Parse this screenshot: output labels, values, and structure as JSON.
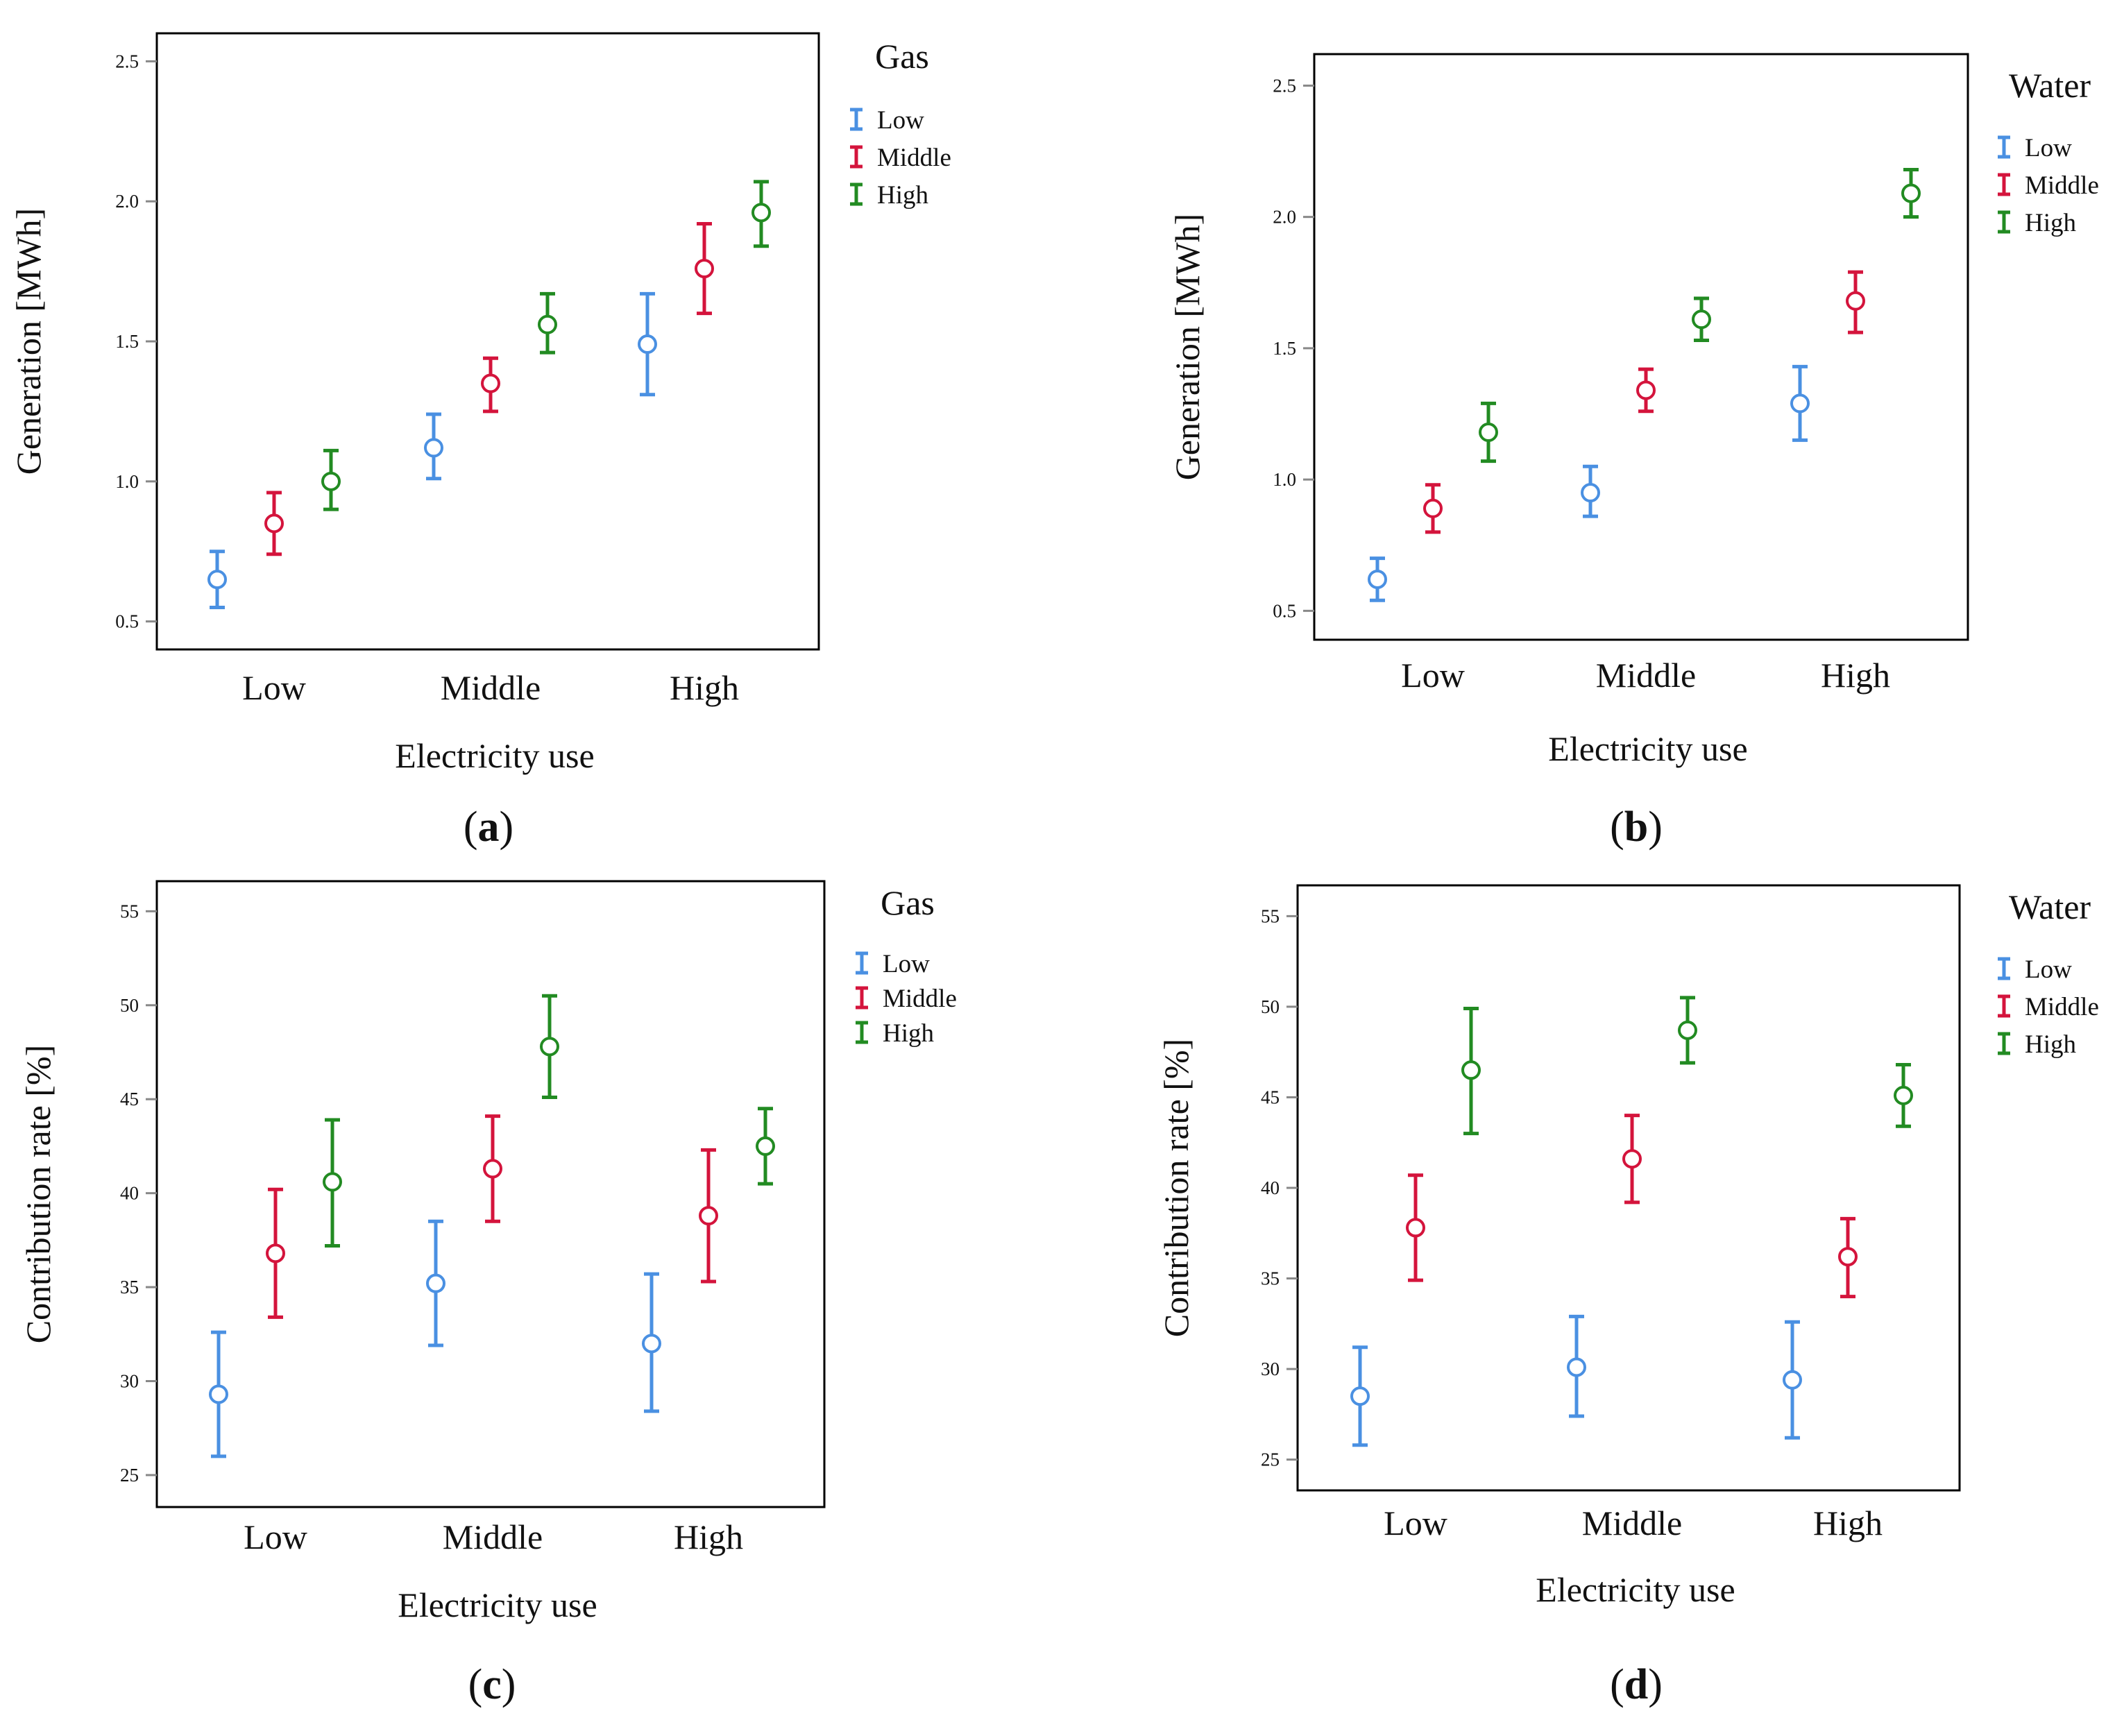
{
  "colors": {
    "low": "#4a90e2",
    "middle": "#d4143c",
    "high": "#228b22",
    "axis": "#000000",
    "tick": "#888888"
  },
  "chart_data": [
    {
      "panel_label": "a",
      "type": "errorbar",
      "xlabel": "Electricity use",
      "ylabel": "Generation [MWh]",
      "categories": [
        "Low",
        "Middle",
        "High"
      ],
      "ylim": [
        0.4,
        2.6
      ],
      "yticks": [
        "0.5",
        "1.0",
        "1.5",
        "2.0",
        "2.5"
      ],
      "legend_title": "Gas",
      "series": [
        {
          "name": "Low",
          "color_key": "low",
          "mean": [
            0.65,
            1.12,
            1.49
          ],
          "lower": [
            0.55,
            1.01,
            1.31
          ],
          "upper": [
            0.75,
            1.24,
            1.67
          ]
        },
        {
          "name": "Middle",
          "color_key": "middle",
          "mean": [
            0.85,
            1.35,
            1.76
          ],
          "lower": [
            0.74,
            1.25,
            1.6
          ],
          "upper": [
            0.96,
            1.44,
            1.92
          ]
        },
        {
          "name": "High",
          "color_key": "high",
          "mean": [
            1.0,
            1.56,
            1.96
          ],
          "lower": [
            0.9,
            1.46,
            1.84
          ],
          "upper": [
            1.11,
            1.67,
            2.07
          ]
        }
      ]
    },
    {
      "panel_label": "b",
      "type": "errorbar",
      "xlabel": "Electricity use",
      "ylabel": "Generation [MWh]",
      "categories": [
        "Low",
        "Middle",
        "High"
      ],
      "ylim": [
        0.39,
        2.62
      ],
      "yticks": [
        "0.5",
        "1.0",
        "1.5",
        "2.0",
        "2.5"
      ],
      "legend_title": "Water",
      "series": [
        {
          "name": "Low",
          "color_key": "low",
          "mean": [
            0.62,
            0.95,
            1.29
          ],
          "lower": [
            0.54,
            0.86,
            1.15
          ],
          "upper": [
            0.7,
            1.05,
            1.43
          ]
        },
        {
          "name": "Middle",
          "color_key": "middle",
          "mean": [
            0.89,
            1.34,
            1.68
          ],
          "lower": [
            0.8,
            1.26,
            1.56
          ],
          "upper": [
            0.98,
            1.42,
            1.79
          ]
        },
        {
          "name": "High",
          "color_key": "high",
          "mean": [
            1.18,
            1.61,
            2.09
          ],
          "lower": [
            1.07,
            1.53,
            2.0
          ],
          "upper": [
            1.29,
            1.69,
            2.18
          ]
        }
      ]
    },
    {
      "panel_label": "c",
      "type": "errorbar",
      "xlabel": "Electricity use",
      "ylabel": "Contribution rate [%]",
      "categories": [
        "Low",
        "Middle",
        "High"
      ],
      "ylim": [
        23.3,
        56.6
      ],
      "yticks": [
        "25",
        "30",
        "35",
        "40",
        "45",
        "50",
        "55"
      ],
      "legend_title": "Gas",
      "series": [
        {
          "name": "Low",
          "color_key": "low",
          "mean": [
            29.3,
            35.2,
            32.0
          ],
          "lower": [
            26.0,
            31.9,
            28.4
          ],
          "upper": [
            32.6,
            38.5,
            35.7
          ]
        },
        {
          "name": "Middle",
          "color_key": "middle",
          "mean": [
            36.8,
            41.3,
            38.8
          ],
          "lower": [
            33.4,
            38.5,
            35.3
          ],
          "upper": [
            40.2,
            44.1,
            42.3
          ]
        },
        {
          "name": "High",
          "color_key": "high",
          "mean": [
            40.6,
            47.8,
            42.5
          ],
          "lower": [
            37.2,
            45.1,
            40.5
          ],
          "upper": [
            43.9,
            50.5,
            44.5
          ]
        }
      ]
    },
    {
      "panel_label": "d",
      "type": "errorbar",
      "xlabel": "Electricity use",
      "ylabel": "Contribution rate [%]",
      "categories": [
        "Low",
        "Middle",
        "High"
      ],
      "ylim": [
        23.3,
        56.7
      ],
      "yticks": [
        "25",
        "30",
        "35",
        "40",
        "45",
        "50",
        "55"
      ],
      "legend_title": "Water",
      "series": [
        {
          "name": "Low",
          "color_key": "low",
          "mean": [
            28.5,
            30.1,
            29.4
          ],
          "lower": [
            25.8,
            27.4,
            26.2
          ],
          "upper": [
            31.2,
            32.9,
            32.6
          ]
        },
        {
          "name": "Middle",
          "color_key": "middle",
          "mean": [
            37.8,
            41.6,
            36.2
          ],
          "lower": [
            34.9,
            39.2,
            34.0
          ],
          "upper": [
            40.7,
            44.0,
            38.3
          ]
        },
        {
          "name": "High",
          "color_key": "high",
          "mean": [
            46.5,
            48.7,
            45.1
          ],
          "lower": [
            43.0,
            46.9,
            43.4
          ],
          "upper": [
            49.9,
            50.5,
            46.8
          ]
        }
      ]
    }
  ]
}
